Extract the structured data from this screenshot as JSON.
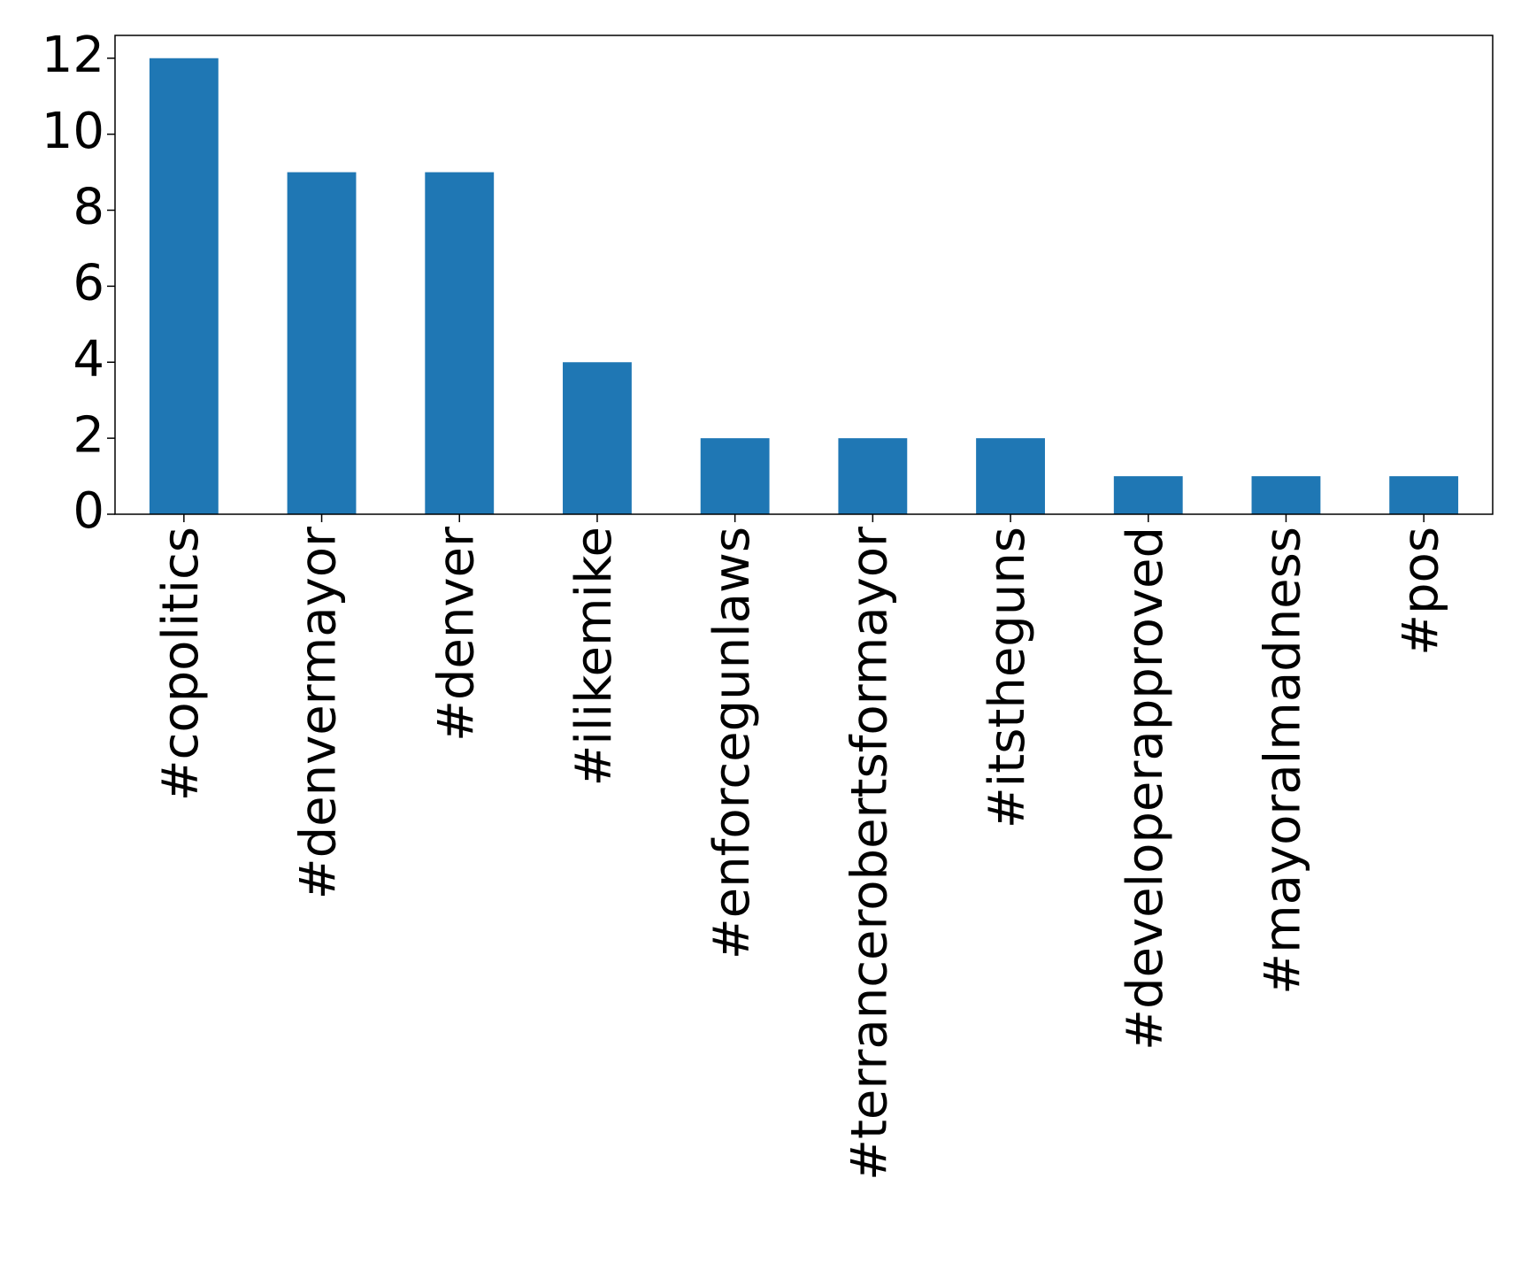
{
  "chart_data": {
    "type": "bar",
    "categories": [
      "#copolitics",
      "#denvermayor",
      "#denver",
      "#ilikemike",
      "#enforcegunlaws",
      "#terrancerobertsformayor",
      "#itstheguns",
      "#developerapproved",
      "#mayoralmadness",
      "#pos"
    ],
    "values": [
      12,
      9,
      9,
      4,
      2,
      2,
      2,
      1,
      1,
      1
    ],
    "color": "#1f77b4",
    "ylim": [
      0,
      12.6
    ],
    "yticks": [
      0,
      2,
      4,
      6,
      8,
      10,
      12
    ],
    "grid": false
  }
}
